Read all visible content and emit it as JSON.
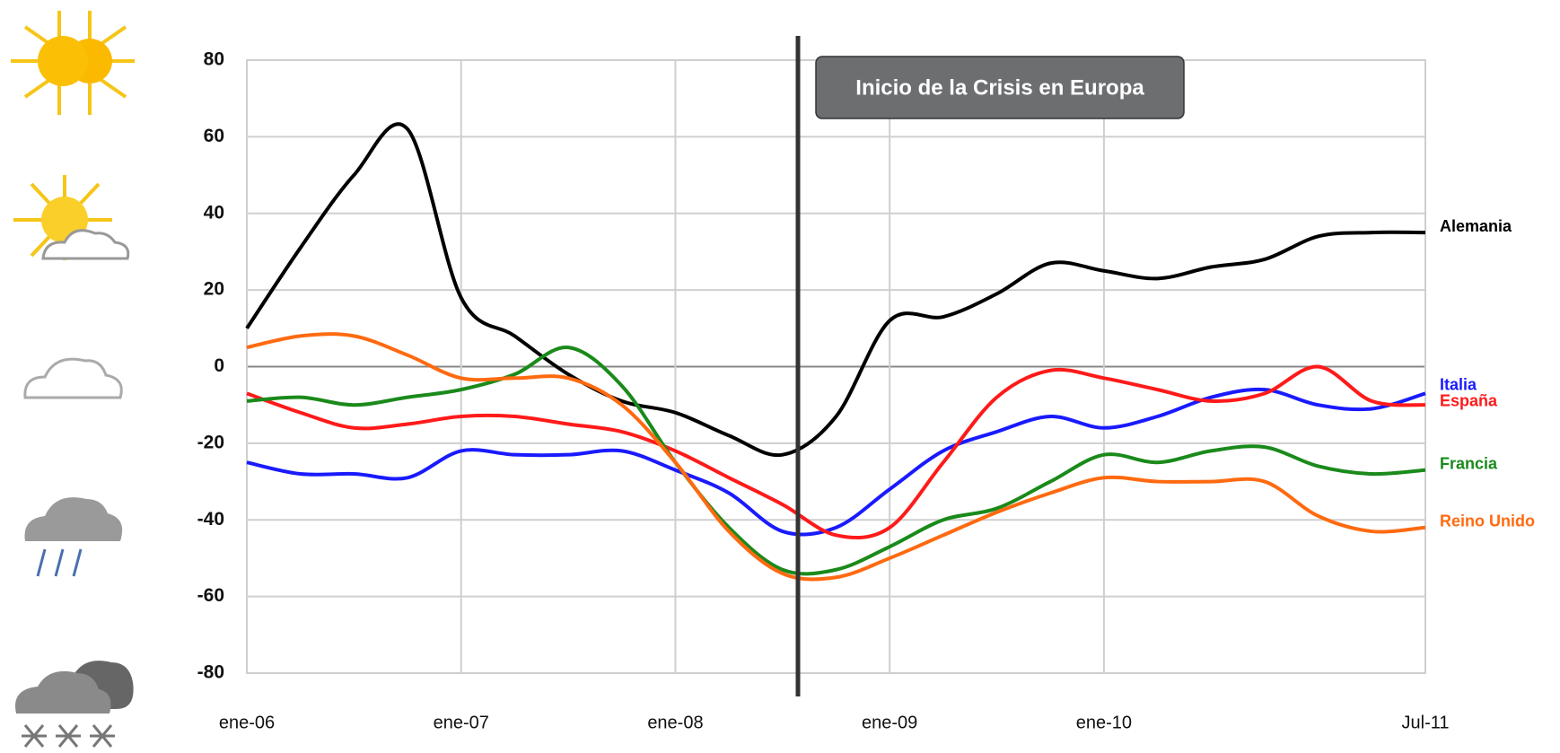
{
  "chart_data": {
    "type": "line",
    "annotation": "Inicio de la Crisis en Europa",
    "categories": [
      "ene-06",
      null,
      null,
      null,
      "ene-07",
      null,
      null,
      null,
      "ene-08",
      null,
      null,
      null,
      "ene-09",
      null,
      null,
      null,
      "ene-10",
      null,
      null,
      null,
      null,
      null,
      "Jul-11"
    ],
    "ylim": [
      -80,
      80
    ],
    "yticks": [
      -80,
      -60,
      -40,
      -20,
      0,
      20,
      40,
      60,
      80
    ],
    "grid": true,
    "series": [
      {
        "name": "Alemania",
        "color": "#000000",
        "values": [
          10,
          31,
          50,
          62,
          18,
          8,
          -2,
          -9,
          -12,
          -18,
          -23,
          -13,
          12,
          13,
          19,
          27,
          25,
          23,
          26,
          28,
          34,
          35,
          35
        ]
      },
      {
        "name": "Italia",
        "color": "#1a1aff",
        "values": [
          -25,
          -28,
          -28,
          -29,
          -22,
          -23,
          -23,
          -22,
          -27,
          -33,
          -43,
          -42,
          -32,
          -22,
          -17,
          -13,
          -16,
          -13,
          -8,
          -6,
          -10,
          -11,
          -7
        ]
      },
      {
        "name": "España",
        "color": "#ff1a1a",
        "values": [
          -7,
          -12,
          -16,
          -15,
          -13,
          -13,
          -15,
          -17,
          -22,
          -29,
          -36,
          -44,
          -42,
          -25,
          -8,
          -1,
          -3,
          -6,
          -9,
          -7,
          0,
          -9,
          -10
        ]
      },
      {
        "name": "Francia",
        "color": "#1a8a1a",
        "values": [
          -9,
          -8,
          -10,
          -8,
          -6,
          -2,
          5,
          -5,
          -25,
          -42,
          -53,
          -53,
          -47,
          -40,
          -37,
          -30,
          -23,
          -25,
          -22,
          -21,
          -26,
          -28,
          -27
        ]
      },
      {
        "name": "Reino Unido",
        "color": "#ff6a10",
        "values": [
          5,
          8,
          8,
          3,
          -3,
          -3,
          -3,
          -10,
          -25,
          -43,
          -54,
          -55,
          -50,
          -44,
          -38,
          -33,
          -29,
          -30,
          -30,
          -30,
          -39,
          -43,
          -42
        ]
      }
    ]
  }
}
